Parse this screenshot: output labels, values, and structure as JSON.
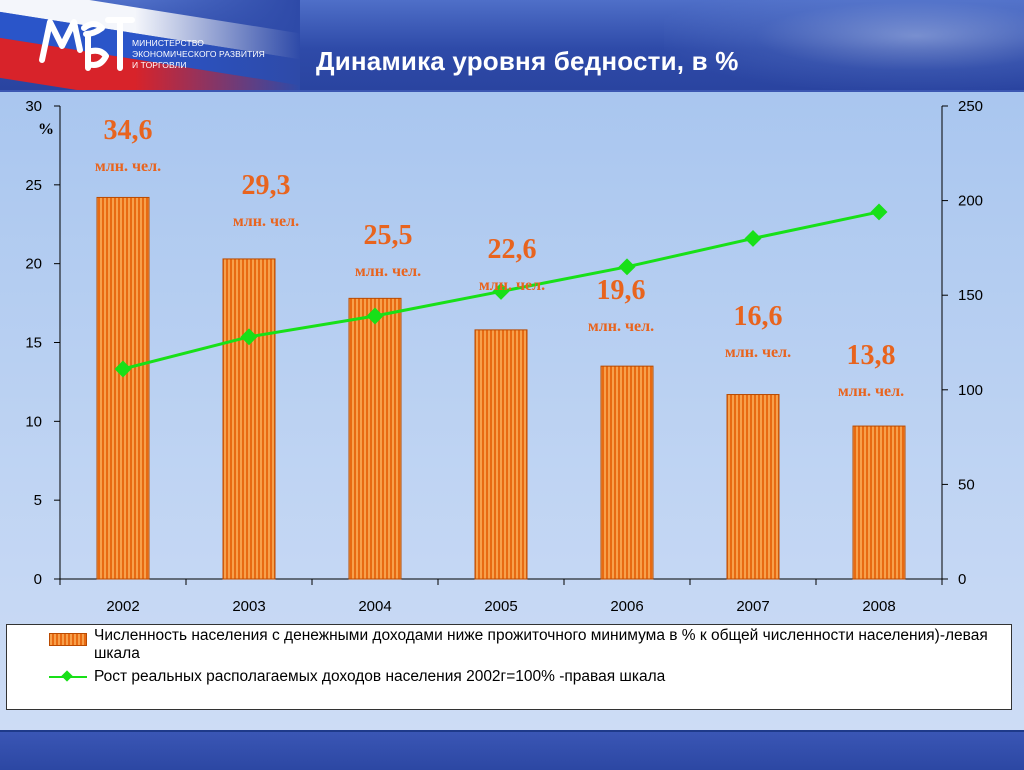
{
  "header": {
    "logo_text": "МЭРТ",
    "ministry_lines": [
      "МИНИСТЕРСТВО",
      "ЭКОНОМИЧЕСКОГО РАЗВИТИЯ",
      "И ТОРГОВЛИ"
    ],
    "title": "Динамика уровня бедности, в %"
  },
  "colors": {
    "bar_light": "#f7a04b",
    "bar_dark": "#e86a12",
    "bar_border": "#b94a00",
    "line": "#18e018",
    "annotation": "#e8641e"
  },
  "chart_data": {
    "type": "bar",
    "categories": [
      "2002",
      "2003",
      "2004",
      "2005",
      "2006",
      "2007",
      "2008"
    ],
    "series": [
      {
        "name": "Численность населения с денежными доходами ниже прожиточного минимума в % к общей численности населения)-левая шкала",
        "type": "bar",
        "axis": "left",
        "values": [
          24.2,
          20.3,
          17.8,
          15.8,
          13.5,
          11.7,
          9.7
        ]
      },
      {
        "name": "Рост реальных располагаемых доходов населения 2002г=100% -правая шкала",
        "type": "line",
        "axis": "right",
        "values": [
          111,
          128,
          139,
          152,
          165,
          180,
          194
        ]
      }
    ],
    "annotations": [
      {
        "value": "34,6",
        "unit": "млн. чел."
      },
      {
        "value": "29,3",
        "unit": "млн. чел."
      },
      {
        "value": "25,5",
        "unit": "млн. чел."
      },
      {
        "value": "22,6",
        "unit": "млн. чел."
      },
      {
        "value": "19,6",
        "unit": "млн. чел."
      },
      {
        "value": "16,6",
        "unit": "млн. чел."
      },
      {
        "value": "13,8",
        "unit": "млн. чел."
      }
    ],
    "left_axis": {
      "label": "%",
      "ylim": [
        0,
        30
      ],
      "ticks": [
        0,
        5,
        10,
        15,
        20,
        25,
        30
      ]
    },
    "right_axis": {
      "ylim": [
        0,
        250
      ],
      "ticks": [
        0,
        50,
        100,
        150,
        200,
        250
      ]
    },
    "grid": false,
    "legend_position": "bottom"
  }
}
